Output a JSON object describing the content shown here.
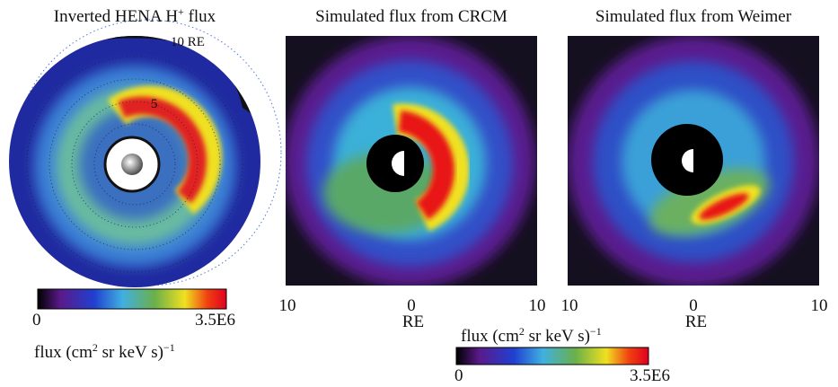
{
  "panels": [
    {
      "title": [
        "Inverted HENA H",
        "+",
        " flux"
      ],
      "outer_label": "10 RE",
      "inner_label": "5",
      "colorbar": {
        "min": "0",
        "max": "3.5E6",
        "unit": [
          "flux (cm",
          "2",
          " sr keV s)",
          "−1"
        ]
      }
    },
    {
      "title": "Simulated flux from CRCM",
      "x_ticks": [
        "10",
        "0",
        "10"
      ],
      "x_label": "RE"
    },
    {
      "title": "Simulated flux from Weimer",
      "x_ticks": [
        "10",
        "0",
        "10"
      ],
      "x_label": "RE"
    }
  ],
  "shared_colorbar": {
    "min": "0",
    "max": "3.5E6",
    "unit": [
      "flux (cm",
      "2",
      " sr keV s)",
      "−1"
    ]
  }
}
